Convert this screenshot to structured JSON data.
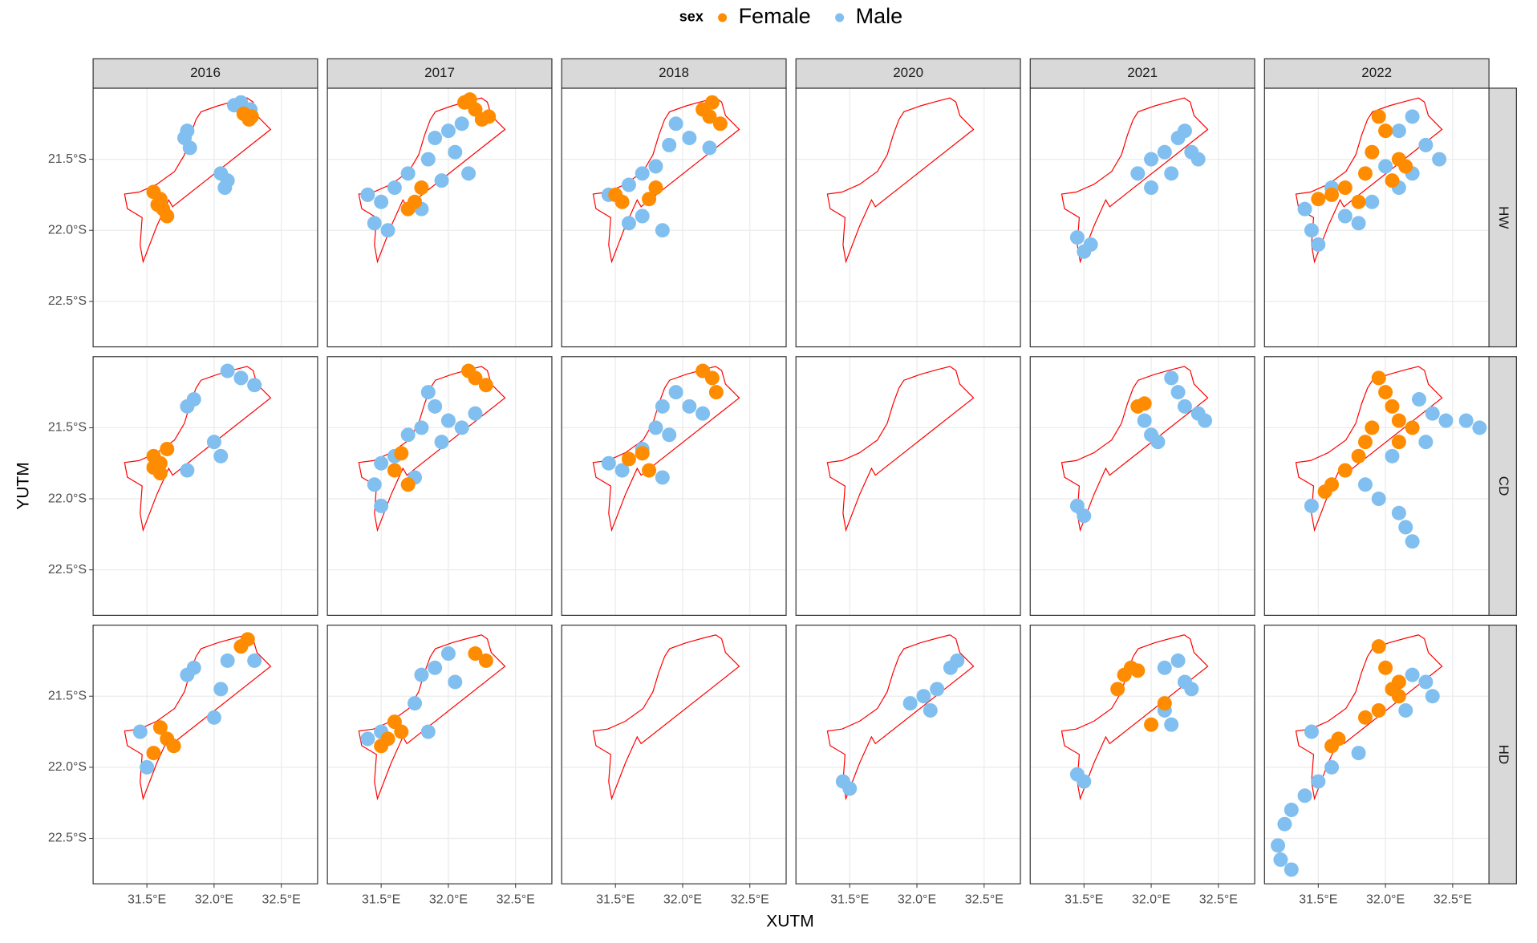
{
  "chart_data": {
    "type": "scatter",
    "x_label": "XUTM",
    "y_label": "YUTM",
    "legend_title": "sex",
    "columns": [
      "2016",
      "2017",
      "2018",
      "2020",
      "2021",
      "2022"
    ],
    "rows": [
      "HW",
      "CD",
      "HD"
    ],
    "xlim": [
      31.1,
      32.77
    ],
    "ylim": [
      -22.82,
      -21.0
    ],
    "xticks": [
      {
        "value": 31.5,
        "label": "31.5°E"
      },
      {
        "value": 32.0,
        "label": "32.0°E"
      },
      {
        "value": 32.5,
        "label": "32.5°E"
      }
    ],
    "yticks": [
      {
        "value": -21.5,
        "label": "21.5°S"
      },
      {
        "value": -22.0,
        "label": "22.0°S"
      },
      {
        "value": -22.5,
        "label": "22.5°S"
      }
    ],
    "grid": true,
    "legend_position": "top",
    "boundary_color": "#ff0000",
    "boundary": {
      "x": [
        31.866,
        31.903,
        32.027,
        32.158,
        32.246,
        32.29,
        32.319,
        32.421,
        31.691,
        31.662,
        31.574,
        31.472,
        31.45,
        31.465,
        31.355,
        31.334,
        31.443,
        31.574,
        31.706,
        31.779,
        31.823,
        31.866
      ],
      "y": [
        -21.221,
        -21.166,
        -21.124,
        -21.09,
        -21.069,
        -21.097,
        -21.193,
        -21.29,
        -21.834,
        -21.786,
        -21.97,
        -22.221,
        -22.103,
        -21.91,
        -21.848,
        -21.745,
        -21.731,
        -21.676,
        -21.586,
        -21.469,
        -21.331,
        -21.221
      ]
    },
    "series": [
      {
        "name": "Female",
        "color": "#ff8c00",
        "panels": [
          {
            "x": [
              32.22,
              32.26,
              32.28,
              31.55,
              31.6,
              31.62,
              31.65,
              31.58
            ],
            "y": [
              -21.18,
              -21.22,
              -21.2,
              -21.73,
              -21.78,
              -21.85,
              -21.9,
              -21.82
            ]
          },
          {
            "x": [
              32.12,
              32.2,
              32.25,
              32.3,
              32.16,
              31.75,
              31.8,
              31.7
            ],
            "y": [
              -21.1,
              -21.15,
              -21.22,
              -21.2,
              -21.08,
              -21.8,
              -21.7,
              -21.85
            ]
          },
          {
            "x": [
              32.15,
              32.22,
              32.28,
              32.2,
              31.5,
              31.55,
              31.75,
              31.8
            ],
            "y": [
              -21.15,
              -21.1,
              -21.25,
              -21.2,
              -21.75,
              -21.8,
              -21.78,
              -21.7
            ]
          },
          {
            "x": [],
            "y": []
          },
          {
            "x": [],
            "y": []
          },
          {
            "x": [
              31.95,
              32.0,
              32.1,
              31.9,
              31.85,
              31.7,
              31.6,
              31.5,
              32.05,
              32.15,
              31.8
            ],
            "y": [
              -21.2,
              -21.3,
              -21.5,
              -21.45,
              -21.6,
              -21.7,
              -21.75,
              -21.78,
              -21.65,
              -21.55,
              -21.8
            ]
          },
          {
            "x": [
              31.55,
              31.6,
              31.65,
              31.6,
              31.55
            ],
            "y": [
              -21.7,
              -21.75,
              -21.65,
              -21.82,
              -21.78
            ]
          },
          {
            "x": [
              32.15,
              32.2,
              32.28,
              31.65,
              31.6,
              31.7
            ],
            "y": [
              -21.1,
              -21.15,
              -21.2,
              -21.68,
              -21.8,
              -21.9
            ]
          },
          {
            "x": [
              32.15,
              32.22,
              32.25,
              31.6,
              31.7,
              31.75
            ],
            "y": [
              -21.1,
              -21.15,
              -21.25,
              -21.72,
              -21.68,
              -21.8
            ]
          },
          {
            "x": [],
            "y": []
          },
          {
            "x": [
              31.9,
              31.95
            ],
            "y": [
              -21.35,
              -21.33
            ]
          },
          {
            "x": [
              31.95,
              32.0,
              32.05,
              32.1,
              31.9,
              31.85,
              31.8,
              31.7,
              31.6,
              31.55,
              32.1,
              32.2
            ],
            "y": [
              -21.15,
              -21.25,
              -21.35,
              -21.45,
              -21.5,
              -21.6,
              -21.7,
              -21.8,
              -21.9,
              -21.95,
              -21.6,
              -21.5
            ]
          },
          {
            "x": [
              32.2,
              32.25,
              31.6,
              31.65,
              31.7,
              31.55
            ],
            "y": [
              -21.15,
              -21.1,
              -21.72,
              -21.8,
              -21.85,
              -21.9
            ]
          },
          {
            "x": [
              32.2,
              32.28,
              31.6,
              31.65,
              31.55,
              31.5
            ],
            "y": [
              -21.2,
              -21.25,
              -21.68,
              -21.75,
              -21.8,
              -21.85
            ]
          },
          {
            "x": [],
            "y": []
          },
          {
            "x": [],
            "y": []
          },
          {
            "x": [
              31.75,
              31.8,
              31.85,
              31.9,
              32.1,
              32.0
            ],
            "y": [
              -21.45,
              -21.35,
              -21.3,
              -21.32,
              -21.55,
              -21.7
            ]
          },
          {
            "x": [
              31.95,
              32.0,
              32.05,
              32.1,
              31.95,
              31.85,
              31.65,
              31.6,
              32.1
            ],
            "y": [
              -21.15,
              -21.3,
              -21.45,
              -21.5,
              -21.6,
              -21.65,
              -21.8,
              -21.85,
              -21.4
            ]
          }
        ]
      },
      {
        "name": "Male",
        "color": "#80bfef",
        "panels": [
          {
            "x": [
              32.15,
              32.2,
              32.27,
              31.78,
              31.82,
              31.8,
              32.05,
              32.1,
              32.08
            ],
            "y": [
              -21.12,
              -21.1,
              -21.15,
              -21.35,
              -21.42,
              -21.3,
              -21.6,
              -21.65,
              -21.7
            ]
          },
          {
            "x": [
              31.4,
              31.5,
              31.6,
              31.7,
              31.85,
              31.9,
              32.0,
              32.1,
              32.05,
              31.45,
              31.55,
              31.8,
              31.95,
              32.15
            ],
            "y": [
              -21.75,
              -21.8,
              -21.7,
              -21.6,
              -21.5,
              -21.35,
              -21.3,
              -21.25,
              -21.45,
              -21.95,
              -22.0,
              -21.85,
              -21.65,
              -21.6
            ]
          },
          {
            "x": [
              31.45,
              31.6,
              31.7,
              31.8,
              31.9,
              31.95,
              32.05,
              32.2,
              31.7,
              31.85,
              31.6
            ],
            "y": [
              -21.75,
              -21.68,
              -21.6,
              -21.55,
              -21.4,
              -21.25,
              -21.35,
              -21.42,
              -21.9,
              -22.0,
              -21.95
            ]
          },
          {
            "x": [],
            "y": []
          },
          {
            "x": [
              31.9,
              32.0,
              32.1,
              32.2,
              32.25,
              32.3,
              32.35,
              32.15,
              32.0,
              31.45,
              31.5,
              31.55
            ],
            "y": [
              -21.6,
              -21.5,
              -21.45,
              -21.35,
              -21.3,
              -21.45,
              -21.5,
              -21.6,
              -21.7,
              -22.05,
              -22.15,
              -22.1
            ]
          },
          {
            "x": [
              32.1,
              32.2,
              32.3,
              32.4,
              32.2,
              31.9,
              31.7,
              31.45,
              31.5,
              31.4,
              31.6,
              32.0,
              32.1,
              31.8
            ],
            "y": [
              -21.3,
              -21.2,
              -21.4,
              -21.5,
              -21.6,
              -21.8,
              -21.9,
              -22.0,
              -22.1,
              -21.85,
              -21.7,
              -21.55,
              -21.7,
              -21.95
            ]
          },
          {
            "x": [
              31.8,
              31.85,
              32.1,
              32.2,
              32.3,
              32.0,
              32.05,
              31.8
            ],
            "y": [
              -21.35,
              -21.3,
              -21.1,
              -21.15,
              -21.2,
              -21.6,
              -21.7,
              -21.8
            ]
          },
          {
            "x": [
              31.5,
              31.6,
              31.7,
              31.8,
              31.9,
              31.85,
              32.0,
              32.1,
              32.2,
              31.45,
              31.5,
              31.75,
              31.95
            ],
            "y": [
              -21.75,
              -21.7,
              -21.55,
              -21.5,
              -21.35,
              -21.25,
              -21.45,
              -21.5,
              -21.4,
              -21.9,
              -22.05,
              -21.85,
              -21.6
            ]
          },
          {
            "x": [
              31.45,
              31.55,
              31.7,
              31.8,
              31.85,
              31.95,
              32.05,
              32.15,
              31.9,
              31.85
            ],
            "y": [
              -21.75,
              -21.8,
              -21.65,
              -21.5,
              -21.35,
              -21.25,
              -21.35,
              -21.4,
              -21.55,
              -21.85
            ]
          },
          {
            "x": [],
            "y": []
          },
          {
            "x": [
              32.15,
              32.2,
              32.25,
              32.35,
              32.4,
              31.95,
              32.0,
              32.05,
              31.45,
              31.5
            ],
            "y": [
              -21.15,
              -21.25,
              -21.35,
              -21.4,
              -21.45,
              -21.45,
              -21.55,
              -21.6,
              -22.05,
              -22.12
            ]
          },
          {
            "x": [
              32.25,
              32.35,
              32.45,
              32.6,
              32.7,
              31.85,
              31.95,
              32.1,
              32.15,
              32.2,
              32.05,
              31.45,
              32.3
            ],
            "y": [
              -21.3,
              -21.4,
              -21.45,
              -21.45,
              -21.5,
              -21.9,
              -22.0,
              -22.1,
              -22.2,
              -22.3,
              -21.7,
              -22.05,
              -21.6
            ]
          },
          {
            "x": [
              31.8,
              31.85,
              32.1,
              32.05,
              32.0,
              32.3,
              31.45,
              31.5
            ],
            "y": [
              -21.35,
              -21.3,
              -21.25,
              -21.45,
              -21.65,
              -21.25,
              -21.75,
              -22.0
            ]
          },
          {
            "x": [
              31.8,
              31.9,
              32.0,
              32.05,
              31.75,
              31.85,
              31.4,
              31.5
            ],
            "y": [
              -21.35,
              -21.3,
              -21.2,
              -21.4,
              -21.55,
              -21.75,
              -21.8,
              -21.75
            ]
          },
          {
            "x": [],
            "y": []
          },
          {
            "x": [
              31.95,
              32.05,
              32.15,
              32.25,
              32.3,
              32.1,
              31.45,
              31.5
            ],
            "y": [
              -21.55,
              -21.5,
              -21.45,
              -21.3,
              -21.25,
              -21.6,
              -22.1,
              -22.15
            ]
          },
          {
            "x": [
              32.1,
              32.2,
              32.25,
              32.3,
              32.1,
              32.15,
              31.5,
              31.45
            ],
            "y": [
              -21.3,
              -21.25,
              -21.4,
              -21.45,
              -21.6,
              -21.7,
              -22.1,
              -22.05
            ]
          },
          {
            "x": [
              32.2,
              32.3,
              32.35,
              32.15,
              31.8,
              31.6,
              31.5,
              31.45,
              31.4,
              31.3,
              31.25,
              31.2,
              31.22,
              31.3
            ],
            "y": [
              -21.35,
              -21.4,
              -21.5,
              -21.6,
              -21.9,
              -22.0,
              -22.1,
              -21.75,
              -22.2,
              -22.3,
              -22.4,
              -22.55,
              -22.65,
              -22.72
            ]
          }
        ]
      }
    ]
  }
}
